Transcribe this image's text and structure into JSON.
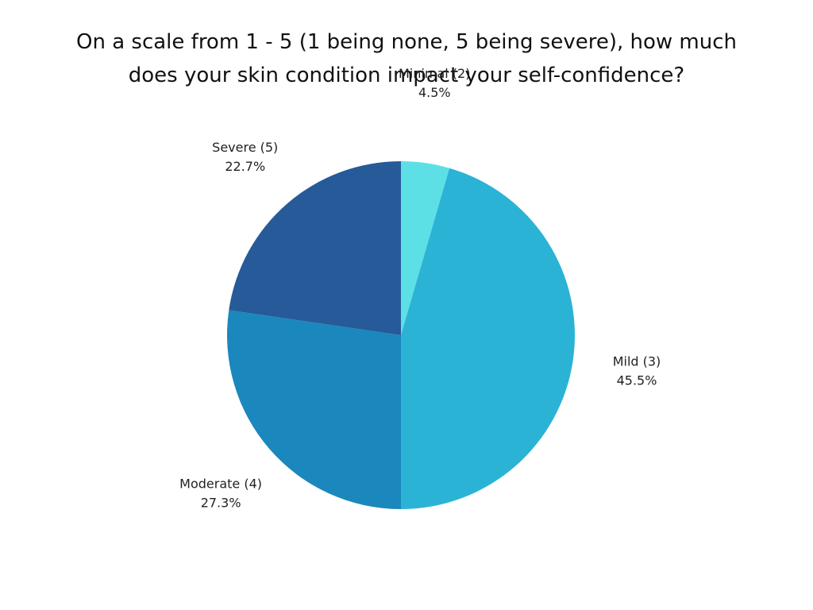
{
  "chart_data": {
    "type": "pie",
    "title_lines": [
      "On a scale from 1 - 5 (1 being none, 5 being severe), how much",
      "does your skin condition impact your self-confidence?"
    ],
    "categories": [
      "Minimal (2)",
      "Mild (3)",
      "Moderate (4)",
      "Severe (5)"
    ],
    "values": [
      4.5,
      45.5,
      27.3,
      22.7
    ],
    "value_labels": [
      "4.5%",
      "45.5%",
      "27.3%",
      "22.7%"
    ],
    "colors": [
      "#5ce0e6",
      "#2bb3d6",
      "#1a88bd",
      "#275a99"
    ],
    "start": "12 o'clock",
    "direction": "clockwise",
    "legend": "none",
    "label_placement": "outside"
  }
}
